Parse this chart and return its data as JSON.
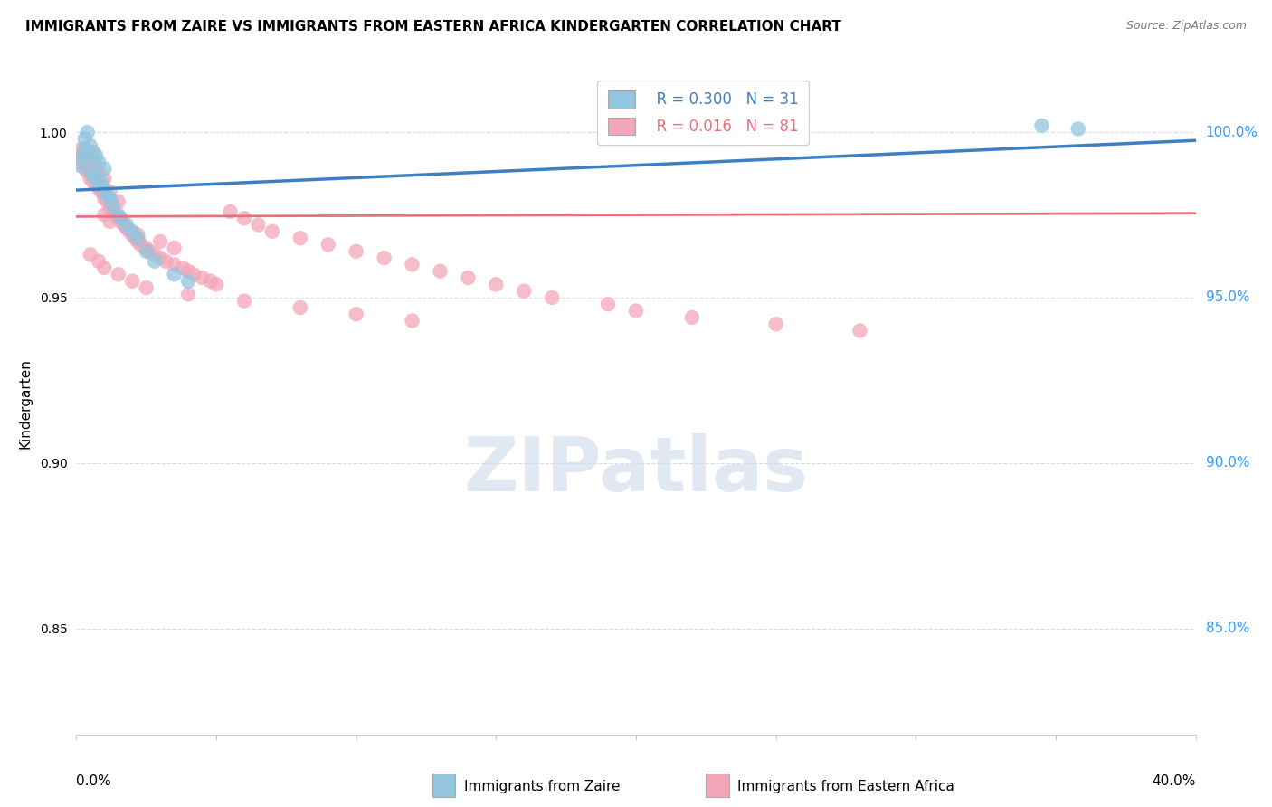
{
  "title": "IMMIGRANTS FROM ZAIRE VS IMMIGRANTS FROM EASTERN AFRICA KINDERGARTEN CORRELATION CHART",
  "source": "Source: ZipAtlas.com",
  "ylabel": "Kindergarten",
  "ytick_values": [
    1.0,
    0.95,
    0.9,
    0.85
  ],
  "xlim": [
    0.0,
    0.4
  ],
  "ylim": [
    0.818,
    1.018
  ],
  "legend_blue_R": "R = 0.300",
  "legend_blue_N": "N = 31",
  "legend_pink_R": "R = 0.016",
  "legend_pink_N": "N = 81",
  "legend_label_blue": "Immigrants from Zaire",
  "legend_label_pink": "Immigrants from Eastern Africa",
  "blue_color": "#92c5de",
  "pink_color": "#f4a6b8",
  "blue_line_color": "#3d7fc1",
  "pink_line_color": "#e8707a",
  "blue_line_y0": 0.9825,
  "blue_line_y1": 0.9975,
  "pink_line_y0": 0.9745,
  "pink_line_y1": 0.9755,
  "watermark_text": "ZIPatlas",
  "watermark_color": "#ccd9e8",
  "background_color": "#ffffff",
  "grid_color": "#dddddd",
  "blue_scatter_x": [
    0.001,
    0.002,
    0.003,
    0.003,
    0.004,
    0.004,
    0.005,
    0.005,
    0.006,
    0.006,
    0.007,
    0.007,
    0.008,
    0.008,
    0.009,
    0.01,
    0.01,
    0.011,
    0.012,
    0.013,
    0.015,
    0.016,
    0.018,
    0.02,
    0.022,
    0.025,
    0.028,
    0.035,
    0.04,
    0.345,
    0.358
  ],
  "blue_scatter_y": [
    0.99,
    0.993,
    0.995,
    0.998,
    0.992,
    1.0,
    0.988,
    0.996,
    0.987,
    0.994,
    0.986,
    0.993,
    0.984,
    0.991,
    0.985,
    0.983,
    0.989,
    0.981,
    0.98,
    0.978,
    0.975,
    0.974,
    0.972,
    0.97,
    0.968,
    0.964,
    0.961,
    0.957,
    0.955,
    1.002,
    1.001
  ],
  "pink_scatter_x": [
    0.001,
    0.002,
    0.002,
    0.003,
    0.003,
    0.004,
    0.004,
    0.005,
    0.005,
    0.006,
    0.006,
    0.007,
    0.007,
    0.008,
    0.008,
    0.009,
    0.01,
    0.01,
    0.011,
    0.012,
    0.012,
    0.013,
    0.014,
    0.015,
    0.015,
    0.016,
    0.017,
    0.018,
    0.019,
    0.02,
    0.021,
    0.022,
    0.023,
    0.025,
    0.026,
    0.028,
    0.03,
    0.032,
    0.035,
    0.038,
    0.04,
    0.042,
    0.045,
    0.048,
    0.05,
    0.055,
    0.06,
    0.065,
    0.07,
    0.08,
    0.09,
    0.1,
    0.11,
    0.12,
    0.13,
    0.14,
    0.15,
    0.16,
    0.17,
    0.19,
    0.2,
    0.22,
    0.25,
    0.28,
    0.01,
    0.012,
    0.018,
    0.022,
    0.03,
    0.035,
    0.005,
    0.008,
    0.01,
    0.015,
    0.02,
    0.025,
    0.04,
    0.06,
    0.08,
    0.1,
    0.12
  ],
  "pink_scatter_y": [
    0.992,
    0.991,
    0.995,
    0.989,
    0.994,
    0.988,
    0.993,
    0.986,
    0.99,
    0.985,
    0.991,
    0.984,
    0.989,
    0.983,
    0.988,
    0.982,
    0.98,
    0.986,
    0.979,
    0.977,
    0.982,
    0.976,
    0.975,
    0.974,
    0.979,
    0.973,
    0.972,
    0.971,
    0.97,
    0.969,
    0.968,
    0.967,
    0.966,
    0.965,
    0.964,
    0.963,
    0.962,
    0.961,
    0.96,
    0.959,
    0.958,
    0.957,
    0.956,
    0.955,
    0.954,
    0.976,
    0.974,
    0.972,
    0.97,
    0.968,
    0.966,
    0.964,
    0.962,
    0.96,
    0.958,
    0.956,
    0.954,
    0.952,
    0.95,
    0.948,
    0.946,
    0.944,
    0.942,
    0.94,
    0.975,
    0.973,
    0.971,
    0.969,
    0.967,
    0.965,
    0.963,
    0.961,
    0.959,
    0.957,
    0.955,
    0.953,
    0.951,
    0.949,
    0.947,
    0.945,
    0.943
  ]
}
